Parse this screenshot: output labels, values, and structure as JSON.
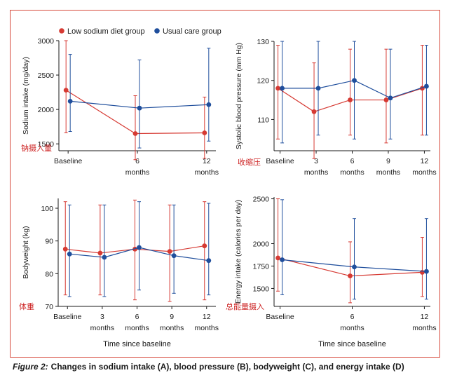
{
  "legend": {
    "items": [
      {
        "label": "Low sodium diet group",
        "color": "#d63a33"
      },
      {
        "label": "Usual care group",
        "color": "#1f4e9c"
      }
    ]
  },
  "caption": {
    "label": "Figure 2:",
    "text": "Changes in sodium intake (A), blood pressure (B), bodyweight (C), and energy intake (D)"
  },
  "chart_data": [
    {
      "type": "line",
      "panel": "A",
      "ylabel": "Sodium intake (mg/day)",
      "annotation": "钠摄入量",
      "xlabel": "",
      "x_ticks": [
        {
          "value": 0,
          "lines": [
            "Baseline"
          ]
        },
        {
          "value": 6,
          "lines": [
            "6",
            "months"
          ]
        },
        {
          "value": 12,
          "lines": [
            "12",
            "months"
          ]
        }
      ],
      "xlim": [
        -0.8,
        12.8
      ],
      "ylim": [
        1400,
        3000
      ],
      "yticks": [
        1500,
        2000,
        2500,
        3000
      ],
      "series": [
        {
          "name": "Low sodium diet group",
          "color": "#d63a33",
          "x": [
            0,
            6,
            12
          ],
          "values": [
            2280,
            1650,
            1660
          ],
          "err_low": [
            1660,
            1270,
            1290
          ],
          "err_high": [
            3000,
            2200,
            2180
          ]
        },
        {
          "name": "Usual care group",
          "color": "#1f4e9c",
          "x": [
            0,
            6,
            12
          ],
          "values": [
            2120,
            2020,
            2070
          ],
          "err_low": [
            1680,
            1440,
            1540
          ],
          "err_high": [
            2800,
            2720,
            2890
          ]
        }
      ]
    },
    {
      "type": "line",
      "panel": "B",
      "ylabel": "Systolic blood pressure (mm Hg)",
      "annotation": "收缩压",
      "xlabel": "",
      "x_ticks": [
        {
          "value": 0,
          "lines": [
            "Baseline"
          ]
        },
        {
          "value": 3,
          "lines": [
            "3",
            "months"
          ]
        },
        {
          "value": 6,
          "lines": [
            "6",
            "months"
          ]
        },
        {
          "value": 9,
          "lines": [
            "9",
            "months"
          ]
        },
        {
          "value": 12,
          "lines": [
            "12",
            "months"
          ]
        }
      ],
      "xlim": [
        -0.5,
        12.5
      ],
      "ylim": [
        102,
        130
      ],
      "yticks": [
        110,
        120,
        130
      ],
      "series": [
        {
          "name": "Low sodium diet group",
          "color": "#d63a33",
          "x": [
            0,
            3,
            6,
            9,
            12
          ],
          "values": [
            118,
            112,
            115,
            115,
            118
          ],
          "err_low": [
            105,
            100,
            106,
            104,
            106
          ],
          "err_high": [
            129,
            124.5,
            128,
            128,
            129
          ]
        },
        {
          "name": "Usual care group",
          "color": "#1f4e9c",
          "x": [
            0,
            3,
            6,
            9,
            12
          ],
          "values": [
            118,
            118,
            120,
            115.5,
            118.5
          ],
          "err_low": [
            104,
            106,
            105,
            105,
            106
          ],
          "err_high": [
            130,
            130,
            130,
            128,
            129
          ]
        }
      ]
    },
    {
      "type": "line",
      "panel": "C",
      "ylabel": "Bodyweight (kg)",
      "annotation": "体重",
      "xlabel": "Time since baseline",
      "x_ticks": [
        {
          "value": 0,
          "lines": [
            "Baseline"
          ]
        },
        {
          "value": 3,
          "lines": [
            "3",
            "months"
          ]
        },
        {
          "value": 6,
          "lines": [
            "6",
            "months"
          ]
        },
        {
          "value": 9,
          "lines": [
            "9",
            "months"
          ]
        },
        {
          "value": 12,
          "lines": [
            "12",
            "months"
          ]
        }
      ],
      "xlim": [
        -0.8,
        12.8
      ],
      "ylim": [
        70,
        103
      ],
      "yticks": [
        70,
        80,
        90,
        100
      ],
      "series": [
        {
          "name": "Low sodium diet group",
          "color": "#d63a33",
          "x": [
            0,
            3,
            6,
            9,
            12
          ],
          "values": [
            87.5,
            86.3,
            87.5,
            86.8,
            88.5
          ],
          "err_low": [
            73.5,
            73.5,
            72,
            71.5,
            72
          ],
          "err_high": [
            102,
            101,
            102.5,
            101,
            102
          ]
        },
        {
          "name": "Usual care group",
          "color": "#1f4e9c",
          "x": [
            0,
            3,
            6,
            9,
            12
          ],
          "values": [
            86,
            85,
            88,
            85.5,
            84
          ],
          "err_low": [
            73,
            73,
            75,
            74,
            73.5
          ],
          "err_high": [
            101,
            101,
            102,
            101,
            101.5
          ]
        }
      ]
    },
    {
      "type": "line",
      "panel": "D",
      "ylabel": "Energy intake (calories per day)",
      "annotation": "总能量摄入",
      "xlabel": "Time since baseline",
      "x_ticks": [
        {
          "value": 0,
          "lines": [
            "Baseline"
          ]
        },
        {
          "value": 6,
          "lines": [
            "6",
            "months"
          ]
        },
        {
          "value": 12,
          "lines": [
            "12",
            "months"
          ]
        }
      ],
      "xlim": [
        -0.5,
        12.5
      ],
      "ylim": [
        1300,
        2520
      ],
      "yticks": [
        1500,
        1750,
        2000,
        2500
      ],
      "series": [
        {
          "name": "Low sodium diet group",
          "color": "#d63a33",
          "x": [
            0,
            6,
            12
          ],
          "values": [
            1840,
            1640,
            1680
          ],
          "err_low": [
            1470,
            1340,
            1410
          ],
          "err_high": [
            2500,
            2020,
            2070
          ]
        },
        {
          "name": "Usual care group",
          "color": "#1f4e9c",
          "x": [
            0,
            6,
            12
          ],
          "values": [
            1820,
            1740,
            1690
          ],
          "err_low": [
            1430,
            1380,
            1380
          ],
          "err_high": [
            2490,
            2280,
            2280
          ]
        }
      ]
    }
  ]
}
